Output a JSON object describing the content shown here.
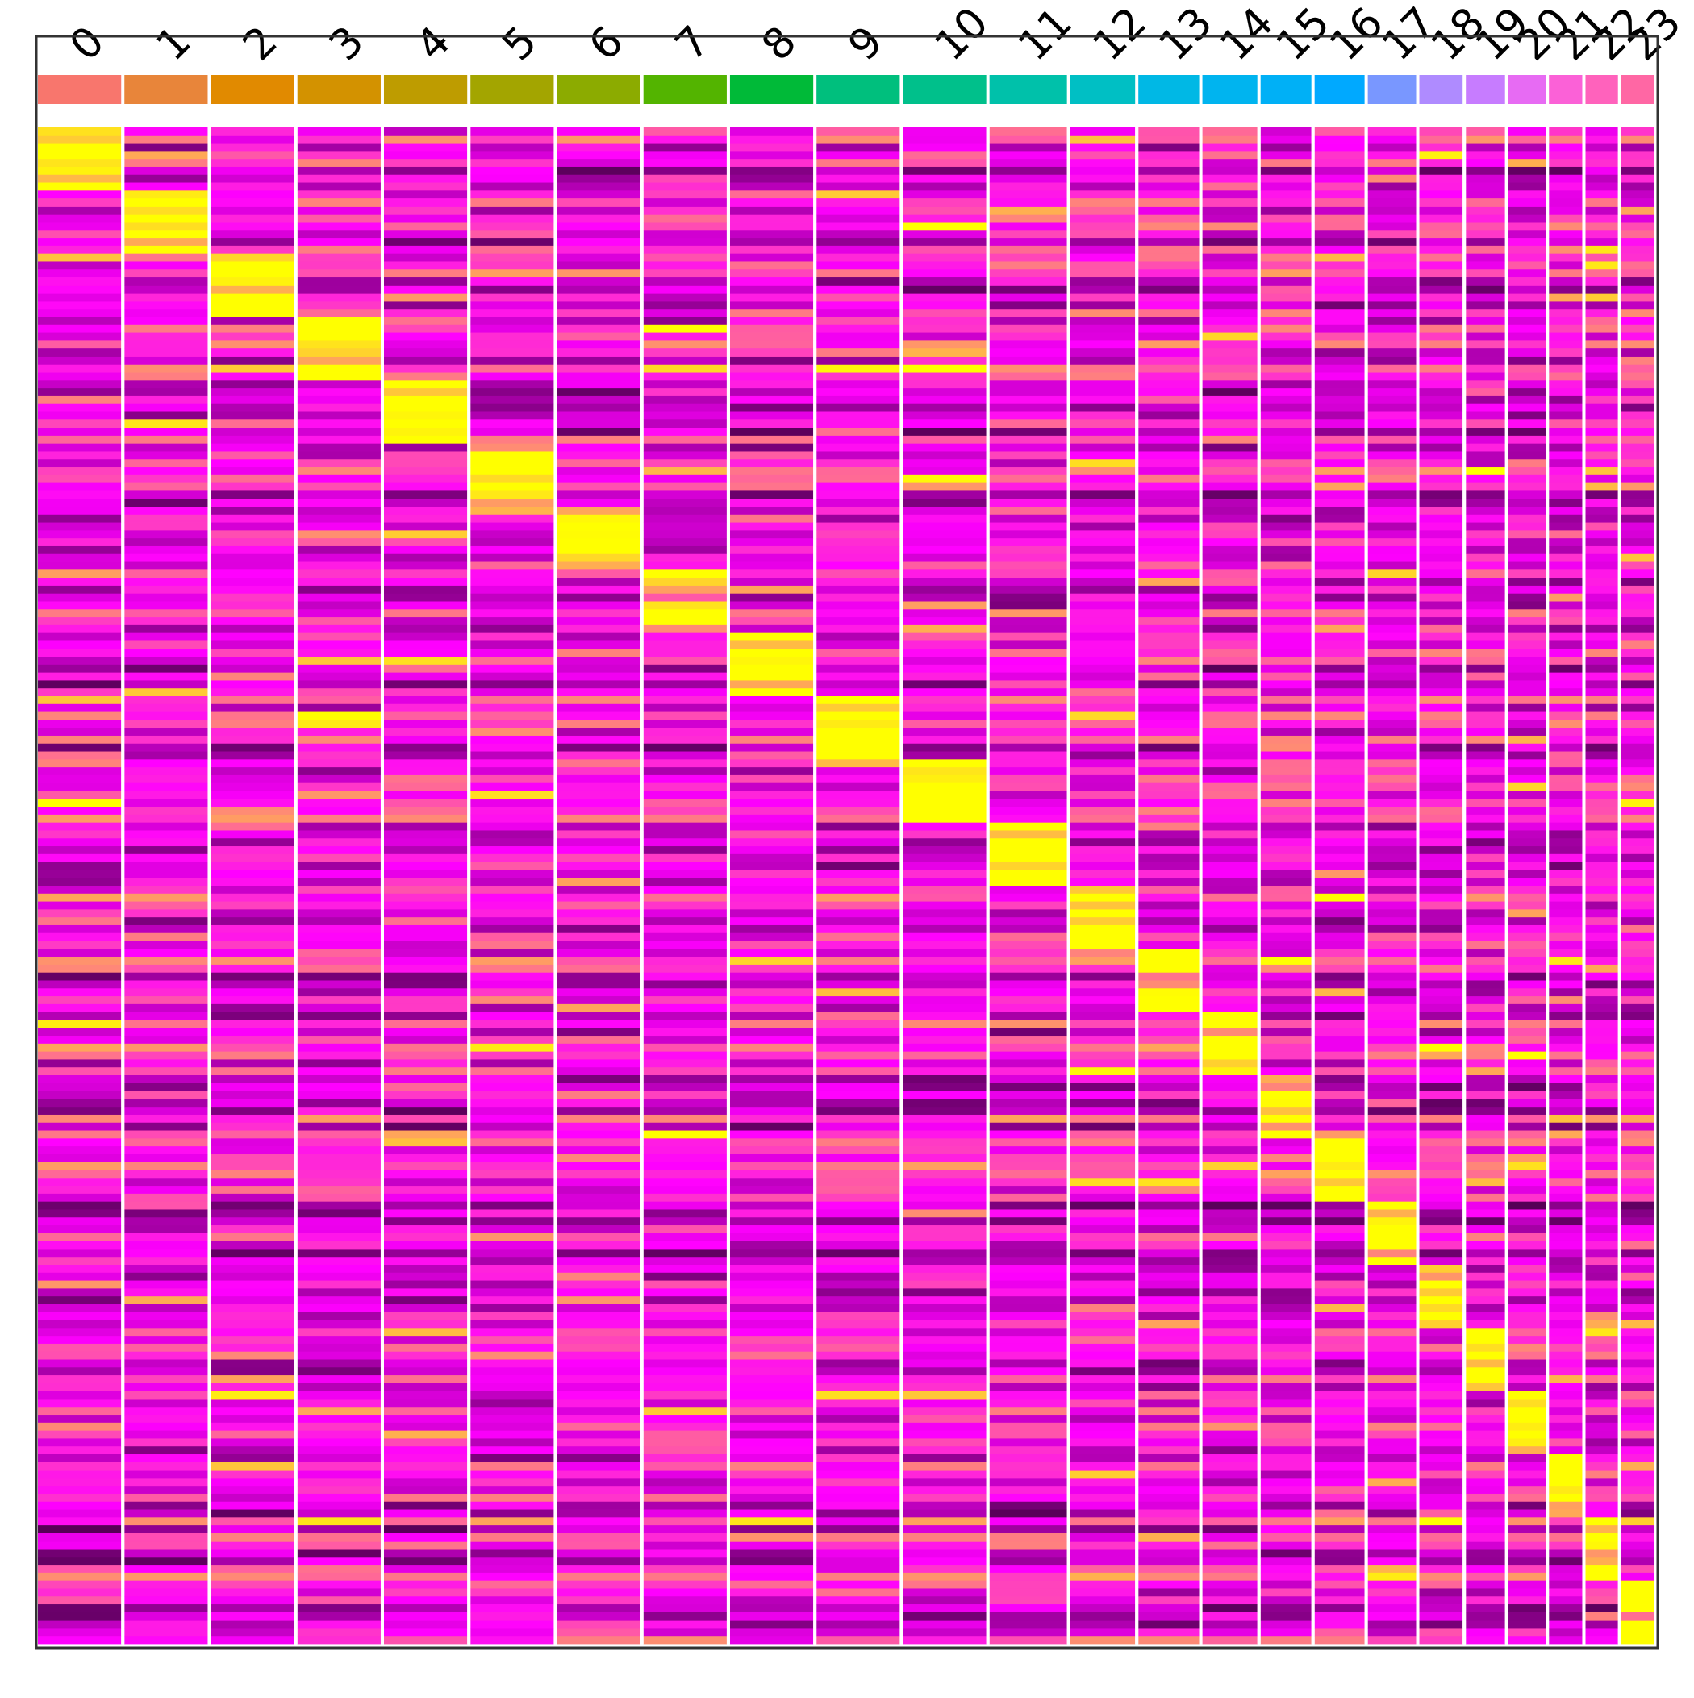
{
  "chart_data": {
    "type": "heatmap",
    "title": "",
    "xlabel": "",
    "ylabel": "",
    "grid": false,
    "legend": "none",
    "categories": [
      "0",
      "1",
      "2",
      "3",
      "4",
      "5",
      "6",
      "7",
      "8",
      "9",
      "10",
      "11",
      "12",
      "13",
      "14",
      "15",
      "16",
      "17",
      "18",
      "19",
      "20",
      "21",
      "22",
      "23"
    ],
    "relative_cell_counts": [
      100,
      100,
      100,
      100,
      100,
      100,
      100,
      100,
      100,
      100,
      100,
      93,
      78,
      73,
      66,
      61,
      60,
      58,
      52,
      47,
      45,
      40,
      39,
      39
    ],
    "colors": {
      "groups": [
        "#F8766D",
        "#E8853A",
        "#E18A00",
        "#D39200",
        "#BE9C00",
        "#A3A500",
        "#8CAB00",
        "#53B400",
        "#00BA38",
        "#00BF7D",
        "#00C08B",
        "#00C1AA",
        "#00BFC4",
        "#00B8E5",
        "#00B4EF",
        "#00B0F6",
        "#00A9FF",
        "#7997FF",
        "#AF8BFF",
        "#C77CFF",
        "#E76BF3",
        "#FB61D7",
        "#FF62BC",
        "#FF67A4"
      ],
      "low": "#000000",
      "mid": "#FF00FF",
      "high": "#FFFF00",
      "frame": "#333333",
      "separator": "#FFFFFF"
    },
    "color_scale": {
      "low_value": -2.5,
      "mid_value": 0,
      "high_value": 2.5
    },
    "gene_blocks": [
      {
        "cluster": "0",
        "fold_high": 3.0
      },
      {
        "cluster": "1",
        "fold_high": 3.0
      },
      {
        "cluster": "2",
        "fold_high": 3.0
      },
      {
        "cluster": "3",
        "fold_high": 2.5
      },
      {
        "cluster": "4",
        "fold_high": 3.0
      },
      {
        "cluster": "5",
        "fold_high": 2.5
      },
      {
        "cluster": "6",
        "fold_high": 2.8
      },
      {
        "cluster": "7",
        "fold_high": 2.4
      },
      {
        "cluster": "8",
        "fold_high": 2.9
      },
      {
        "cluster": "9",
        "fold_high": 2.8
      },
      {
        "cluster": "10",
        "fold_high": 3.0
      },
      {
        "cluster": "11",
        "fold_high": 3.0
      },
      {
        "cluster": "12",
        "fold_high": 3.0
      },
      {
        "cluster": "13",
        "fold_high": 2.5
      },
      {
        "cluster": "14",
        "fold_high": 2.8
      },
      {
        "cluster": "15",
        "fold_high": 3.0
      },
      {
        "cluster": "16",
        "fold_high": 2.9
      },
      {
        "cluster": "17",
        "fold_high": 2.7
      },
      {
        "cluster": "18",
        "fold_high": 3.0
      },
      {
        "cluster": "19",
        "fold_high": 2.8
      },
      {
        "cluster": "20",
        "fold_high": 2.9
      },
      {
        "cluster": "21",
        "fold_high": 2.8
      },
      {
        "cluster": "22",
        "fold_high": 2.9
      },
      {
        "cluster": "23",
        "fold_high": 3.0
      }
    ]
  }
}
